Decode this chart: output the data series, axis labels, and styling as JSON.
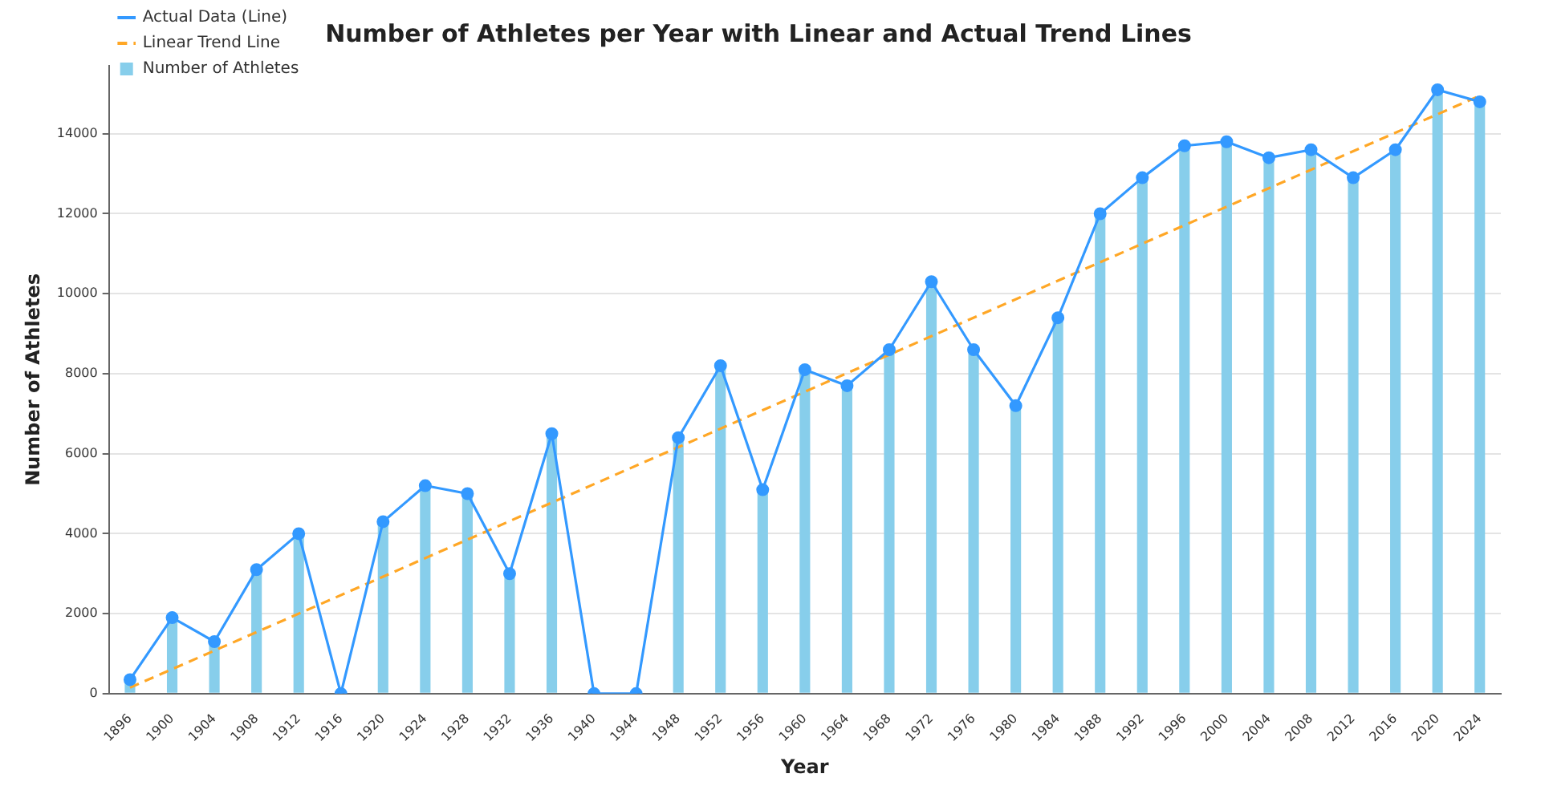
{
  "chart_data": {
    "type": "bar",
    "title": "Number of Athletes per Year with Linear and Actual Trend Lines",
    "xlabel": "Year",
    "ylabel": "Number of Athletes",
    "categories": [
      "1896",
      "1900",
      "1904",
      "1908",
      "1912",
      "1916",
      "1920",
      "1924",
      "1928",
      "1932",
      "1936",
      "1940",
      "1944",
      "1948",
      "1952",
      "1956",
      "1960",
      "1964",
      "1968",
      "1972",
      "1976",
      "1980",
      "1984",
      "1988",
      "1992",
      "1996",
      "2000",
      "2004",
      "2008",
      "2012",
      "2016",
      "2020",
      "2024"
    ],
    "series": [
      {
        "name": "Actual Data (Line)",
        "type": "line",
        "color": "#3399ff",
        "marker": "circle",
        "line_style": "solid",
        "values": [
          350,
          1900,
          1300,
          3100,
          4000,
          0,
          4300,
          5200,
          5000,
          3000,
          6500,
          0,
          0,
          6400,
          8200,
          5100,
          8100,
          7700,
          8600,
          10300,
          8600,
          7200,
          9400,
          12000,
          12900,
          13700,
          13800,
          13400,
          13600,
          12900,
          13600,
          15100,
          14800
        ]
      },
      {
        "name": "Linear Trend Line",
        "type": "line",
        "color": "#ffa726",
        "marker": "none",
        "line_style": "dashed",
        "values": [
          150,
          null,
          null,
          null,
          null,
          null,
          null,
          null,
          null,
          null,
          null,
          null,
          null,
          null,
          null,
          null,
          null,
          null,
          null,
          null,
          null,
          null,
          null,
          null,
          null,
          null,
          null,
          null,
          null,
          null,
          null,
          null,
          14950
        ]
      },
      {
        "name": "Number of Athletes",
        "color": "#87ceeb",
        "values": [
          350,
          1900,
          1300,
          3100,
          4000,
          0,
          4300,
          5200,
          5000,
          3000,
          6500,
          0,
          0,
          6400,
          8200,
          5100,
          8100,
          7700,
          8600,
          10300,
          8600,
          7200,
          9400,
          12000,
          12900,
          13700,
          13800,
          13400,
          13600,
          12900,
          13600,
          15100,
          14800
        ]
      }
    ],
    "ylim": [
      0,
      15700
    ],
    "yticks": [
      0,
      2000,
      4000,
      6000,
      8000,
      10000,
      12000,
      14000
    ],
    "grid": "y",
    "legend": "top left"
  }
}
